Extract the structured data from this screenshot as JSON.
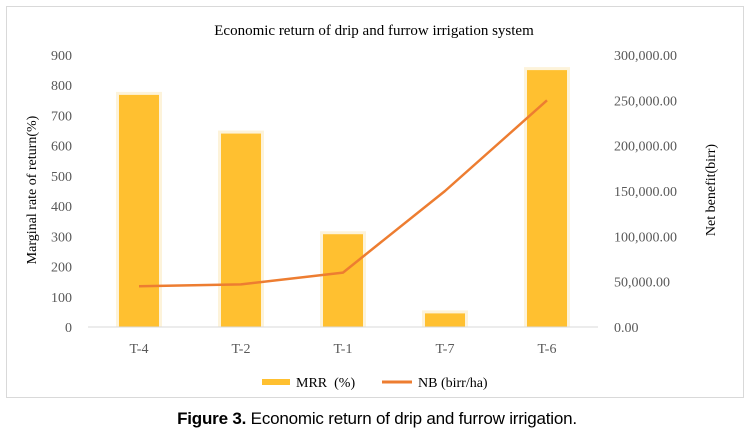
{
  "chart_data": {
    "type": "bar+line",
    "title": "Economic return of drip and furrow irrigation  system",
    "categories": [
      "T-4",
      "T-2",
      "T-1",
      "T-7",
      "T-6"
    ],
    "series": [
      {
        "name": "MRR  (%)",
        "type": "bar",
        "axis": "left",
        "color": "#FFC030",
        "values": [
          768,
          640,
          307,
          45,
          850
        ]
      },
      {
        "name": "NB (birr/ha)",
        "type": "line",
        "axis": "right",
        "color": "#ED7D31",
        "values": [
          45000,
          47000,
          60000,
          150000,
          250000
        ]
      }
    ],
    "ylabel": "Marginal rate of return(%)",
    "y2label": "Net benefit(birr)",
    "ylim": [
      0,
      900
    ],
    "yticks": [
      "0",
      "100",
      "200",
      "300",
      "400",
      "500",
      "600",
      "700",
      "800",
      "900"
    ],
    "y2lim": [
      0,
      300000
    ],
    "y2ticks": [
      "0.00",
      "50,000.00",
      "100,000.00",
      "150,000.00",
      "200,000.00",
      "250,000.00",
      "300,000.00"
    ],
    "grid": false,
    "legend": "bottom"
  },
  "caption": {
    "label": "Figure 3.",
    "text": " Economic return of drip and furrow irrigation."
  }
}
